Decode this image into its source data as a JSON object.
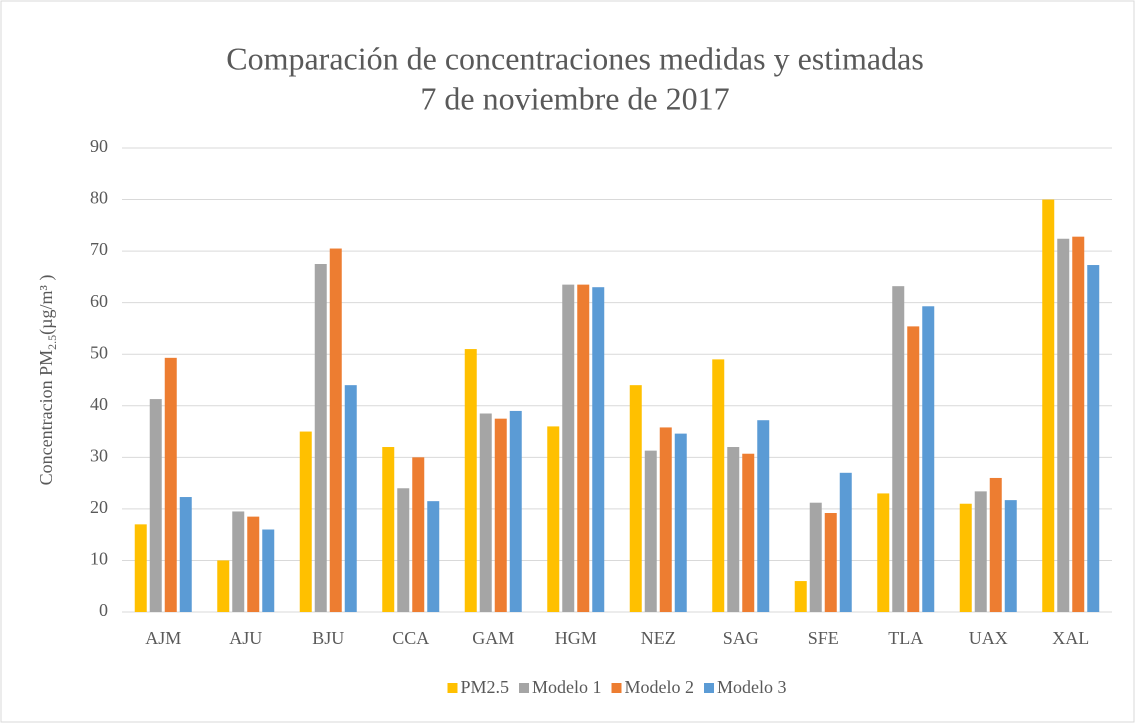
{
  "chart_data": {
    "type": "bar",
    "title": "Comparación de concentraciones medidas y estimadas",
    "subtitle": "7 de noviembre de 2017",
    "y_label": [
      "Concentracion PM",
      "2.5",
      "(µg/m³ )"
    ],
    "categories": [
      "AJM",
      "AJU",
      "BJU",
      "CCA",
      "GAM",
      "HGM",
      "NEZ",
      "SAG",
      "SFE",
      "TLA",
      "UAX",
      "XAL"
    ],
    "series": [
      {
        "name": "PM2.5",
        "color": "#ffc000",
        "values": [
          17,
          10,
          35,
          32,
          51,
          36,
          44,
          49,
          6,
          23,
          21,
          80
        ]
      },
      {
        "name": "Modelo 1",
        "color": "#a5a5a5",
        "values": [
          41.3,
          19.5,
          67.5,
          24,
          38.5,
          63.5,
          31.3,
          32,
          21.2,
          63.2,
          23.4,
          72.4
        ]
      },
      {
        "name": "Modelo 2",
        "color": "#ed7d31",
        "values": [
          49.3,
          18.5,
          70.5,
          30,
          37.5,
          63.5,
          35.8,
          30.7,
          19.2,
          55.4,
          26,
          72.8
        ]
      },
      {
        "name": "Modelo 3",
        "color": "#5b9bd5",
        "values": [
          22.3,
          16,
          44,
          21.5,
          39,
          63,
          34.6,
          37.2,
          27,
          59.3,
          21.7,
          67.3
        ]
      }
    ],
    "ylim": [
      0,
      90
    ],
    "yticks": [
      0,
      10,
      20,
      30,
      40,
      50,
      60,
      70,
      80,
      90
    ],
    "grid": true,
    "legend": "bottom"
  }
}
